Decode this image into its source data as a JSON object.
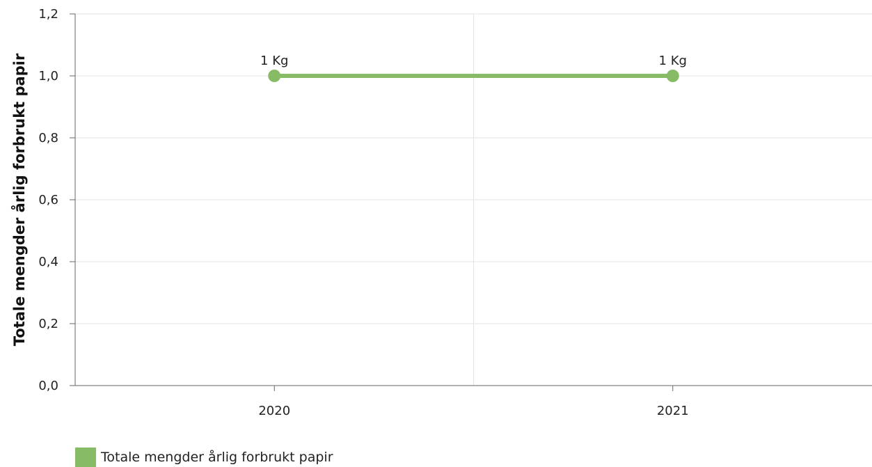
{
  "chart_data": {
    "type": "line",
    "title": "",
    "xlabel": "",
    "ylabel": "Totale mengder årlig forbrukt papir",
    "categories": [
      "2020",
      "2021"
    ],
    "series": [
      {
        "name": "Totale mengder årlig forbrukt papir",
        "values": [
          1,
          1
        ],
        "data_labels": [
          "1 Kg",
          "1 Kg"
        ],
        "color": "#88bb66"
      }
    ],
    "ylim": [
      0,
      1.2
    ],
    "yticks": [
      "0,0",
      "0,2",
      "0,4",
      "0,6",
      "0,8",
      "1,0",
      "1,2"
    ],
    "grid": true,
    "legend": "bottom-left"
  }
}
